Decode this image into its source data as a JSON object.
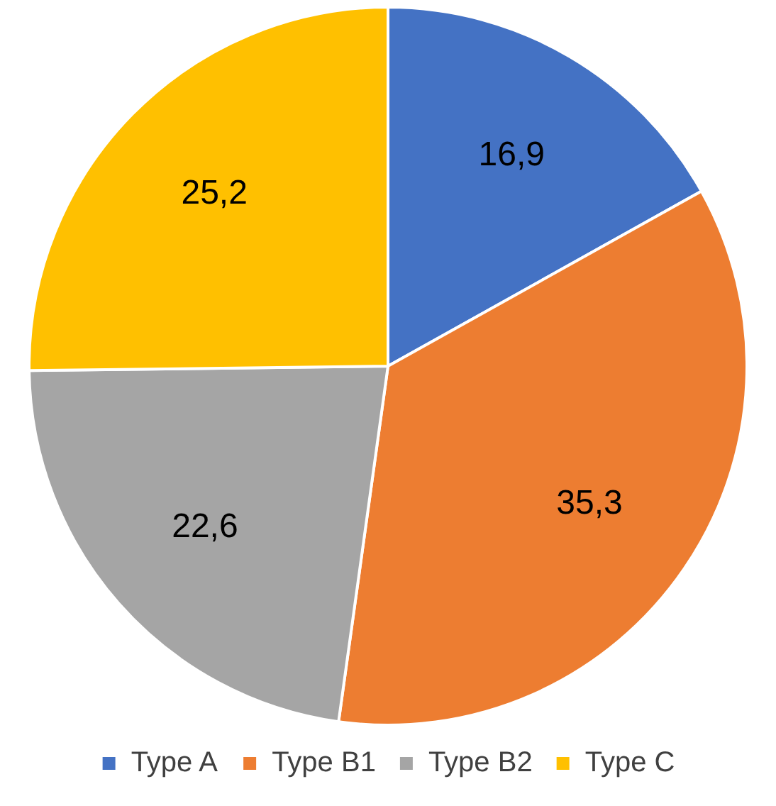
{
  "chart_data": {
    "type": "pie",
    "categories": [
      "Type A",
      "Type B1",
      "Type B2",
      "Type C"
    ],
    "values": [
      16.9,
      35.3,
      22.6,
      25.2
    ],
    "value_labels": [
      "16,9",
      "35,3",
      "22,6",
      "25,2"
    ],
    "colors": [
      "#4472c4",
      "#ed7d31",
      "#a5a5a5",
      "#ffc000"
    ],
    "legend": "bottom"
  }
}
